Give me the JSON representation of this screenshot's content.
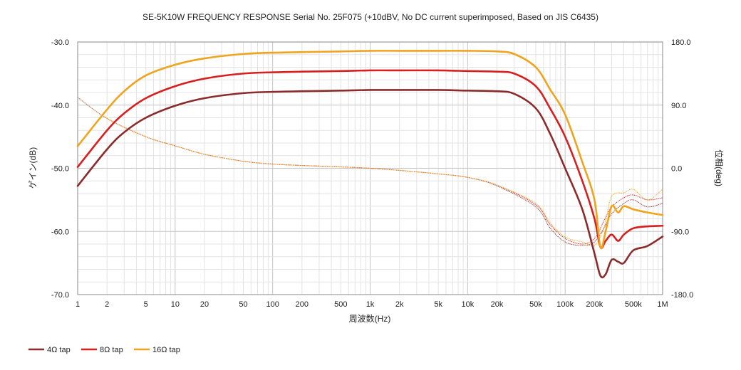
{
  "chart_data": {
    "type": "line",
    "title": "SE-5K10W FREQUENCY RESPONSE Serial No. 25F075 (+10dBV,  No DC current superimposed,  Based on JIS C6435)",
    "xlabel": "周波数(Hz)",
    "ylabel": "ゲイン(dB)",
    "y2label": "位相(deg)",
    "x_scale": "log",
    "xlim": [
      1,
      1000000
    ],
    "ylim": [
      -70,
      -30
    ],
    "y2lim": [
      -180,
      180
    ],
    "grid": true,
    "legend_position": "bottom-left",
    "x_tick_values": [
      1,
      2,
      5,
      10,
      20,
      50,
      100,
      200,
      500,
      1000,
      2000,
      5000,
      10000,
      20000,
      50000,
      100000,
      200000,
      500000,
      1000000
    ],
    "x_tick_labels": [
      "1",
      "2",
      "5",
      "10",
      "20",
      "50",
      "100",
      "200",
      "500",
      "1k",
      "2k",
      "5k",
      "10k",
      "20k",
      "50k",
      "100k",
      "200k",
      "500k",
      "1M"
    ],
    "y_tick_values": [
      -30,
      -40,
      -50,
      -60,
      -70
    ],
    "y_tick_labels": [
      "-30.0",
      "-40.0",
      "-50.0",
      "-60.0",
      "-70.0"
    ],
    "y2_tick_values": [
      180,
      90,
      0,
      -90,
      -180
    ],
    "y2_tick_labels": [
      "180.0",
      "90.0",
      "0.0",
      "-90.0",
      "-180.0"
    ],
    "series": [
      {
        "name": "4Ω tap",
        "color": "#8b2b2b",
        "gain": [
          [
            1,
            -52.8
          ],
          [
            2,
            -47.0
          ],
          [
            3,
            -44.3
          ],
          [
            5,
            -42.0
          ],
          [
            10,
            -40.1
          ],
          [
            20,
            -38.9
          ],
          [
            50,
            -38.1
          ],
          [
            100,
            -37.9
          ],
          [
            200,
            -37.8
          ],
          [
            500,
            -37.7
          ],
          [
            1000,
            -37.6
          ],
          [
            2000,
            -37.6
          ],
          [
            5000,
            -37.6
          ],
          [
            10000,
            -37.7
          ],
          [
            20000,
            -37.8
          ],
          [
            30000,
            -38.2
          ],
          [
            50000,
            -40.5
          ],
          [
            70000,
            -44.5
          ],
          [
            100000,
            -50.0
          ],
          [
            150000,
            -56.5
          ],
          [
            200000,
            -63.5
          ],
          [
            230000,
            -67.0
          ],
          [
            260000,
            -66.8
          ],
          [
            300000,
            -64.5
          ],
          [
            350000,
            -64.8
          ],
          [
            400000,
            -65.0
          ],
          [
            500000,
            -63.0
          ],
          [
            700000,
            -62.3
          ],
          [
            1000000,
            -60.8
          ]
        ],
        "phase": [
          [
            1,
            101
          ],
          [
            2,
            71
          ],
          [
            5,
            45
          ],
          [
            10,
            32
          ],
          [
            20,
            20
          ],
          [
            50,
            10
          ],
          [
            100,
            6
          ],
          [
            200,
            4
          ],
          [
            500,
            2
          ],
          [
            1000,
            0
          ],
          [
            2000,
            -3
          ],
          [
            5000,
            -8
          ],
          [
            10000,
            -13
          ],
          [
            20000,
            -25
          ],
          [
            50000,
            -55
          ],
          [
            70000,
            -85
          ],
          [
            100000,
            -105
          ],
          [
            150000,
            -110
          ],
          [
            200000,
            -105
          ],
          [
            250000,
            -85
          ],
          [
            300000,
            -65
          ],
          [
            400000,
            -50
          ],
          [
            500000,
            -45
          ],
          [
            700000,
            -55
          ],
          [
            1000000,
            -50
          ]
        ]
      },
      {
        "name": "8Ω tap",
        "color": "#d81e1e",
        "gain": [
          [
            1,
            -49.8
          ],
          [
            2,
            -44.0
          ],
          [
            3,
            -41.3
          ],
          [
            5,
            -38.9
          ],
          [
            10,
            -37.0
          ],
          [
            20,
            -35.8
          ],
          [
            50,
            -35.0
          ],
          [
            100,
            -34.8
          ],
          [
            200,
            -34.7
          ],
          [
            500,
            -34.6
          ],
          [
            1000,
            -34.5
          ],
          [
            2000,
            -34.5
          ],
          [
            5000,
            -34.5
          ],
          [
            10000,
            -34.6
          ],
          [
            20000,
            -34.7
          ],
          [
            30000,
            -35.0
          ],
          [
            50000,
            -37.0
          ],
          [
            70000,
            -40.5
          ],
          [
            100000,
            -45.0
          ],
          [
            150000,
            -52.0
          ],
          [
            200000,
            -58.0
          ],
          [
            230000,
            -62.5
          ],
          [
            260000,
            -61.5
          ],
          [
            300000,
            -60.5
          ],
          [
            350000,
            -61.5
          ],
          [
            400000,
            -60.5
          ],
          [
            500000,
            -59.5
          ],
          [
            700000,
            -59.2
          ],
          [
            1000000,
            -59.1
          ]
        ],
        "phase": [
          [
            1,
            101
          ],
          [
            2,
            71
          ],
          [
            5,
            45
          ],
          [
            10,
            32
          ],
          [
            20,
            20
          ],
          [
            50,
            10
          ],
          [
            100,
            6
          ],
          [
            200,
            4
          ],
          [
            500,
            2
          ],
          [
            1000,
            0
          ],
          [
            2000,
            -3
          ],
          [
            5000,
            -8
          ],
          [
            10000,
            -13
          ],
          [
            20000,
            -24
          ],
          [
            50000,
            -52
          ],
          [
            70000,
            -80
          ],
          [
            100000,
            -100
          ],
          [
            150000,
            -108
          ],
          [
            200000,
            -100
          ],
          [
            250000,
            -75
          ],
          [
            300000,
            -55
          ],
          [
            400000,
            -42
          ],
          [
            500000,
            -38
          ],
          [
            700000,
            -45
          ],
          [
            1000000,
            -42
          ]
        ]
      },
      {
        "name": "16Ω tap",
        "color": "#f0a41e",
        "gain": [
          [
            1,
            -46.5
          ],
          [
            2,
            -40.7
          ],
          [
            3,
            -37.8
          ],
          [
            5,
            -35.3
          ],
          [
            10,
            -33.6
          ],
          [
            20,
            -32.6
          ],
          [
            50,
            -31.9
          ],
          [
            100,
            -31.7
          ],
          [
            200,
            -31.6
          ],
          [
            500,
            -31.5
          ],
          [
            1000,
            -31.4
          ],
          [
            2000,
            -31.4
          ],
          [
            5000,
            -31.4
          ],
          [
            10000,
            -31.4
          ],
          [
            20000,
            -31.5
          ],
          [
            30000,
            -31.9
          ],
          [
            50000,
            -34.0
          ],
          [
            70000,
            -37.5
          ],
          [
            100000,
            -41.5
          ],
          [
            150000,
            -49.0
          ],
          [
            200000,
            -55.0
          ],
          [
            230000,
            -62.5
          ],
          [
            260000,
            -60.0
          ],
          [
            300000,
            -56.0
          ],
          [
            350000,
            -57.0
          ],
          [
            400000,
            -56.0
          ],
          [
            500000,
            -56.5
          ],
          [
            700000,
            -57.0
          ],
          [
            1000000,
            -57.4
          ]
        ],
        "phase": [
          [
            1,
            101
          ],
          [
            2,
            71
          ],
          [
            5,
            45
          ],
          [
            10,
            32
          ],
          [
            20,
            20
          ],
          [
            50,
            10
          ],
          [
            100,
            6
          ],
          [
            200,
            4
          ],
          [
            500,
            2
          ],
          [
            1000,
            0
          ],
          [
            2000,
            -3
          ],
          [
            5000,
            -8
          ],
          [
            10000,
            -13
          ],
          [
            20000,
            -24
          ],
          [
            50000,
            -50
          ],
          [
            70000,
            -78
          ],
          [
            100000,
            -98
          ],
          [
            150000,
            -105
          ],
          [
            200000,
            -110
          ],
          [
            250000,
            -85
          ],
          [
            300000,
            -40
          ],
          [
            400000,
            -35
          ],
          [
            500000,
            -30
          ],
          [
            700000,
            -45
          ],
          [
            1000000,
            -30
          ]
        ]
      }
    ]
  }
}
